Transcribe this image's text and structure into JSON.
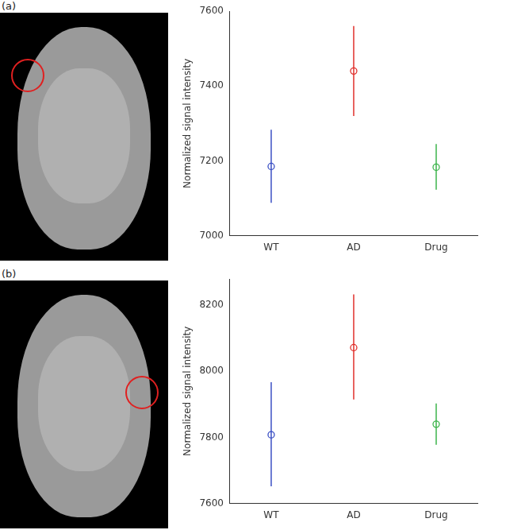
{
  "chart_data": [
    {
      "type": "scatter",
      "title": "(a)",
      "marker": "circle",
      "grid": false,
      "categories": [
        "WT",
        "AD",
        "Drug"
      ],
      "values": [
        7185,
        7440,
        7183
      ],
      "error_bars": [
        [
          7088,
          7283
        ],
        [
          7320,
          7560
        ],
        [
          7123,
          7245
        ]
      ],
      "colors": [
        "#3a4fc4",
        "#e0302c",
        "#3cb44b"
      ],
      "ylabel": "Normalized signal intensity",
      "ylim": [
        7000,
        7600
      ],
      "yticks": [
        7000,
        7200,
        7400,
        7600
      ]
    },
    {
      "type": "scatter",
      "title": "(b)",
      "marker": "circle",
      "grid": false,
      "categories": [
        "WT",
        "AD",
        "Drug"
      ],
      "values": [
        7808,
        8072,
        7840
      ],
      "error_bars": [
        [
          7652,
          7967
        ],
        [
          7915,
          8233
        ],
        [
          7778,
          7903
        ]
      ],
      "colors": [
        "#3a4fc4",
        "#e0302c",
        "#3cb44b"
      ],
      "ylabel": "Normalized signal intensity",
      "ylim": [
        7600,
        8280
      ],
      "yticks": [
        7600,
        7800,
        8000,
        8200
      ]
    }
  ]
}
